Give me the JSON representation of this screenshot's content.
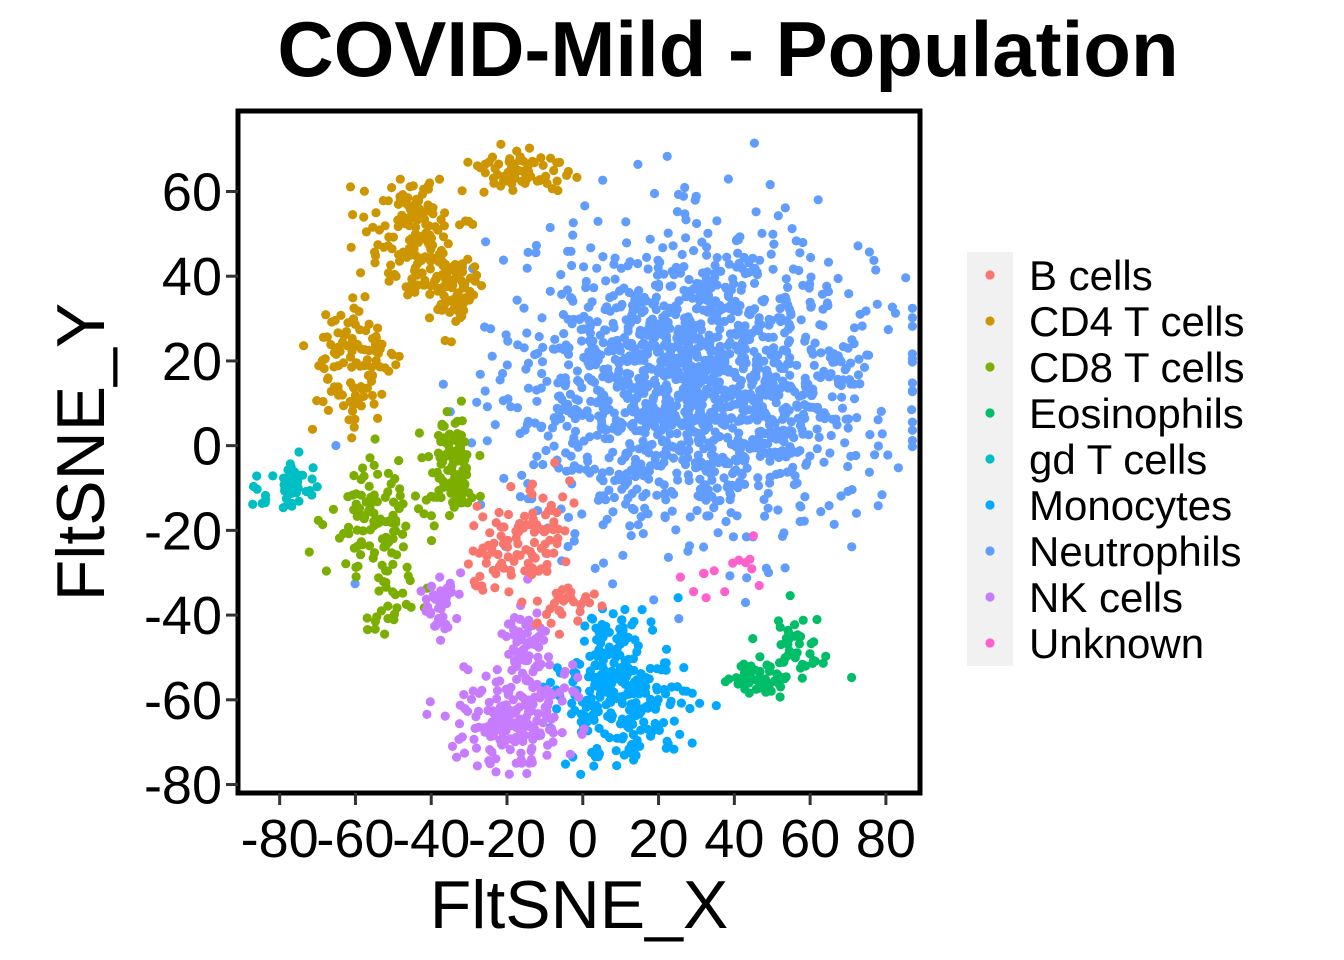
{
  "chart_data": {
    "type": "scatter",
    "title": "COVID-Mild - Population",
    "xlabel": "FltSNE_X",
    "ylabel": "FltSNE_Y",
    "xlim": [
      -91,
      89
    ],
    "ylim": [
      -82,
      79
    ],
    "x_ticks": [
      -80,
      -60,
      -40,
      -20,
      0,
      20,
      40,
      60,
      80
    ],
    "y_ticks": [
      -80,
      -60,
      -40,
      -20,
      0,
      20,
      40,
      60
    ],
    "x_tick_labels": [
      "-80",
      "-60",
      "-40",
      "-20",
      "0",
      "20",
      "40",
      "60",
      "80"
    ],
    "y_tick_labels": [
      "-80",
      "-60",
      "-40",
      "-20",
      "0",
      "20",
      "40",
      "60"
    ],
    "grid": false,
    "legend_position": "right",
    "series": [
      {
        "name": "B cells",
        "color": "#F8766D",
        "clusters": [
          {
            "cx": -15,
            "cy": -22,
            "sx": 6,
            "sy": 6,
            "n": 90
          },
          {
            "cx": -5,
            "cy": -38,
            "sx": 4,
            "sy": 3,
            "n": 30
          },
          {
            "cx": -25,
            "cy": -28,
            "sx": 3,
            "sy": 4,
            "n": 15
          }
        ]
      },
      {
        "name": "CD4 T cells",
        "color": "#CD9600",
        "clusters": [
          {
            "cx": -45,
            "cy": 50,
            "sx": 6,
            "sy": 7,
            "n": 130
          },
          {
            "cx": -35,
            "cy": 38,
            "sx": 4,
            "sy": 6,
            "n": 90
          },
          {
            "cx": -18,
            "cy": 65,
            "sx": 7,
            "sy": 3,
            "n": 70
          },
          {
            "cx": -60,
            "cy": 18,
            "sx": 6,
            "sy": 8,
            "n": 110
          }
        ]
      },
      {
        "name": "CD8 T cells",
        "color": "#7CAE00",
        "clusters": [
          {
            "cx": -35,
            "cy": -5,
            "sx": 3,
            "sy": 6,
            "n": 110
          },
          {
            "cx": -54,
            "cy": -18,
            "sx": 6,
            "sy": 7,
            "n": 110
          },
          {
            "cx": -53,
            "cy": -40,
            "sx": 5,
            "sy": 4,
            "n": 20
          }
        ]
      },
      {
        "name": "Eosinophils",
        "color": "#00BE67",
        "clusters": [
          {
            "cx": 47,
            "cy": -55,
            "sx": 4,
            "sy": 2,
            "n": 50
          },
          {
            "cx": 56,
            "cy": -48,
            "sx": 4,
            "sy": 5,
            "n": 40
          }
        ]
      },
      {
        "name": "gd T cells",
        "color": "#00BFC4",
        "clusters": [
          {
            "cx": -77,
            "cy": -10,
            "sx": 4,
            "sy": 3,
            "n": 45
          }
        ]
      },
      {
        "name": "Monocytes",
        "color": "#00A9FF",
        "clusters": [
          {
            "cx": 10,
            "cy": -58,
            "sx": 8,
            "sy": 8,
            "n": 260
          },
          {
            "cx": 7,
            "cy": -43,
            "sx": 4,
            "sy": 3,
            "n": 15
          }
        ]
      },
      {
        "name": "Neutrophils",
        "color": "#619CFF",
        "clusters": [
          {
            "cx": 30,
            "cy": 15,
            "sx": 23,
            "sy": 17,
            "n": 1550
          }
        ]
      },
      {
        "name": "NK cells",
        "color": "#C77CFF",
        "clusters": [
          {
            "cx": -18,
            "cy": -64,
            "sx": 7,
            "sy": 6,
            "n": 200
          },
          {
            "cx": -15,
            "cy": -48,
            "sx": 3,
            "sy": 6,
            "n": 60
          },
          {
            "cx": -38,
            "cy": -37,
            "sx": 2.5,
            "sy": 3.5,
            "n": 40
          }
        ]
      },
      {
        "name": "Unknown",
        "color": "#FF61CC",
        "clusters": [
          {
            "cx": 33,
            "cy": -30,
            "sx": 6,
            "sy": 4,
            "n": 14
          }
        ]
      }
    ]
  }
}
